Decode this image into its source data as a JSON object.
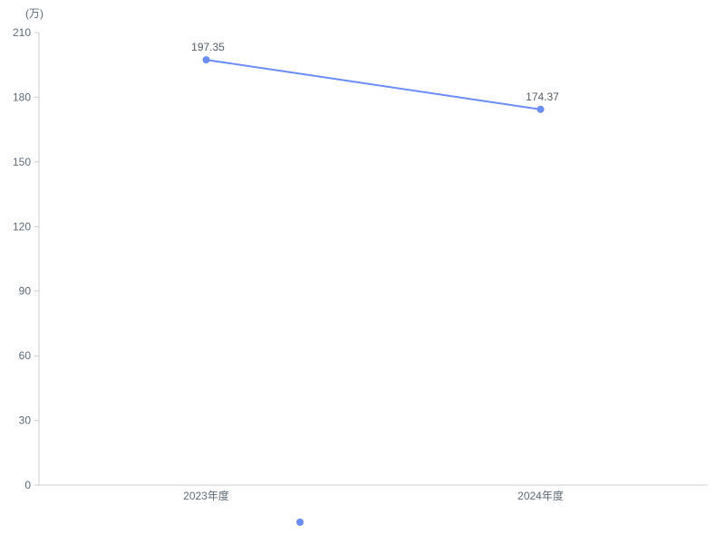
{
  "chart_data": {
    "type": "line",
    "title": "",
    "unit_label": "(万)",
    "categories": [
      "2023年度",
      "2024年度"
    ],
    "series": [
      {
        "name": "",
        "values": [
          197.35,
          174.37
        ]
      }
    ],
    "value_labels": [
      "197.35",
      "174.37"
    ],
    "yticks": [
      0,
      30,
      60,
      90,
      120,
      150,
      180,
      210
    ],
    "ylim": [
      0,
      210
    ],
    "xlabel": "",
    "ylabel": "",
    "grid": false,
    "legend_position": "bottom-center",
    "colors": {
      "line": "#6b8df5",
      "point": "#6b8df5",
      "axis_line": "#cccccc",
      "tick_label": "#5e6b7a",
      "data_label": "#555e66",
      "background": "#ffffff"
    }
  }
}
